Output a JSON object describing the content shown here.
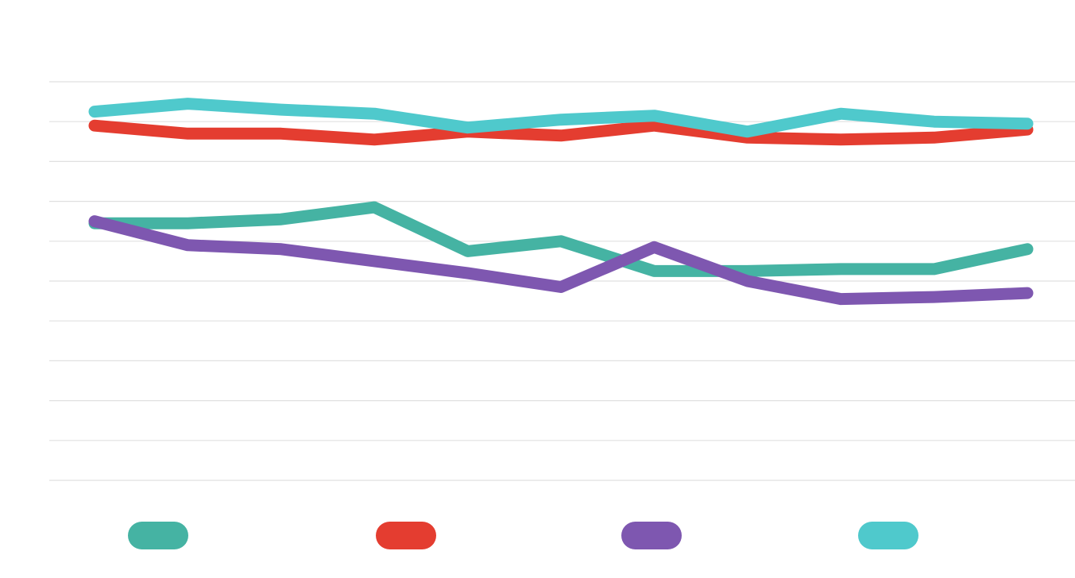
{
  "chart_data": {
    "type": "line",
    "title": "",
    "xlabel": "",
    "ylabel": "",
    "x": [
      1,
      2,
      3,
      4,
      5,
      6,
      7,
      8,
      9,
      10,
      11
    ],
    "ylim": [
      0,
      10
    ],
    "grid": true,
    "legend_position": "bottom",
    "series": [
      {
        "color": "#45b3a3",
        "values": [
          6.45,
          6.45,
          6.55,
          6.85,
          5.75,
          6.0,
          5.25,
          5.25,
          5.3,
          5.3,
          5.8
        ]
      },
      {
        "color": "#e43d30",
        "values": [
          8.9,
          8.7,
          8.7,
          8.55,
          8.75,
          8.65,
          8.9,
          8.6,
          8.55,
          8.6,
          8.8
        ]
      },
      {
        "color": "#7e57b0",
        "values": [
          6.5,
          5.9,
          5.8,
          5.5,
          5.2,
          4.85,
          5.85,
          5.0,
          4.55,
          4.6,
          4.7
        ]
      },
      {
        "color": "#4fc9cc",
        "values": [
          9.25,
          9.45,
          9.3,
          9.2,
          8.85,
          9.05,
          9.15,
          8.75,
          9.2,
          9.0,
          8.95
        ]
      }
    ]
  }
}
